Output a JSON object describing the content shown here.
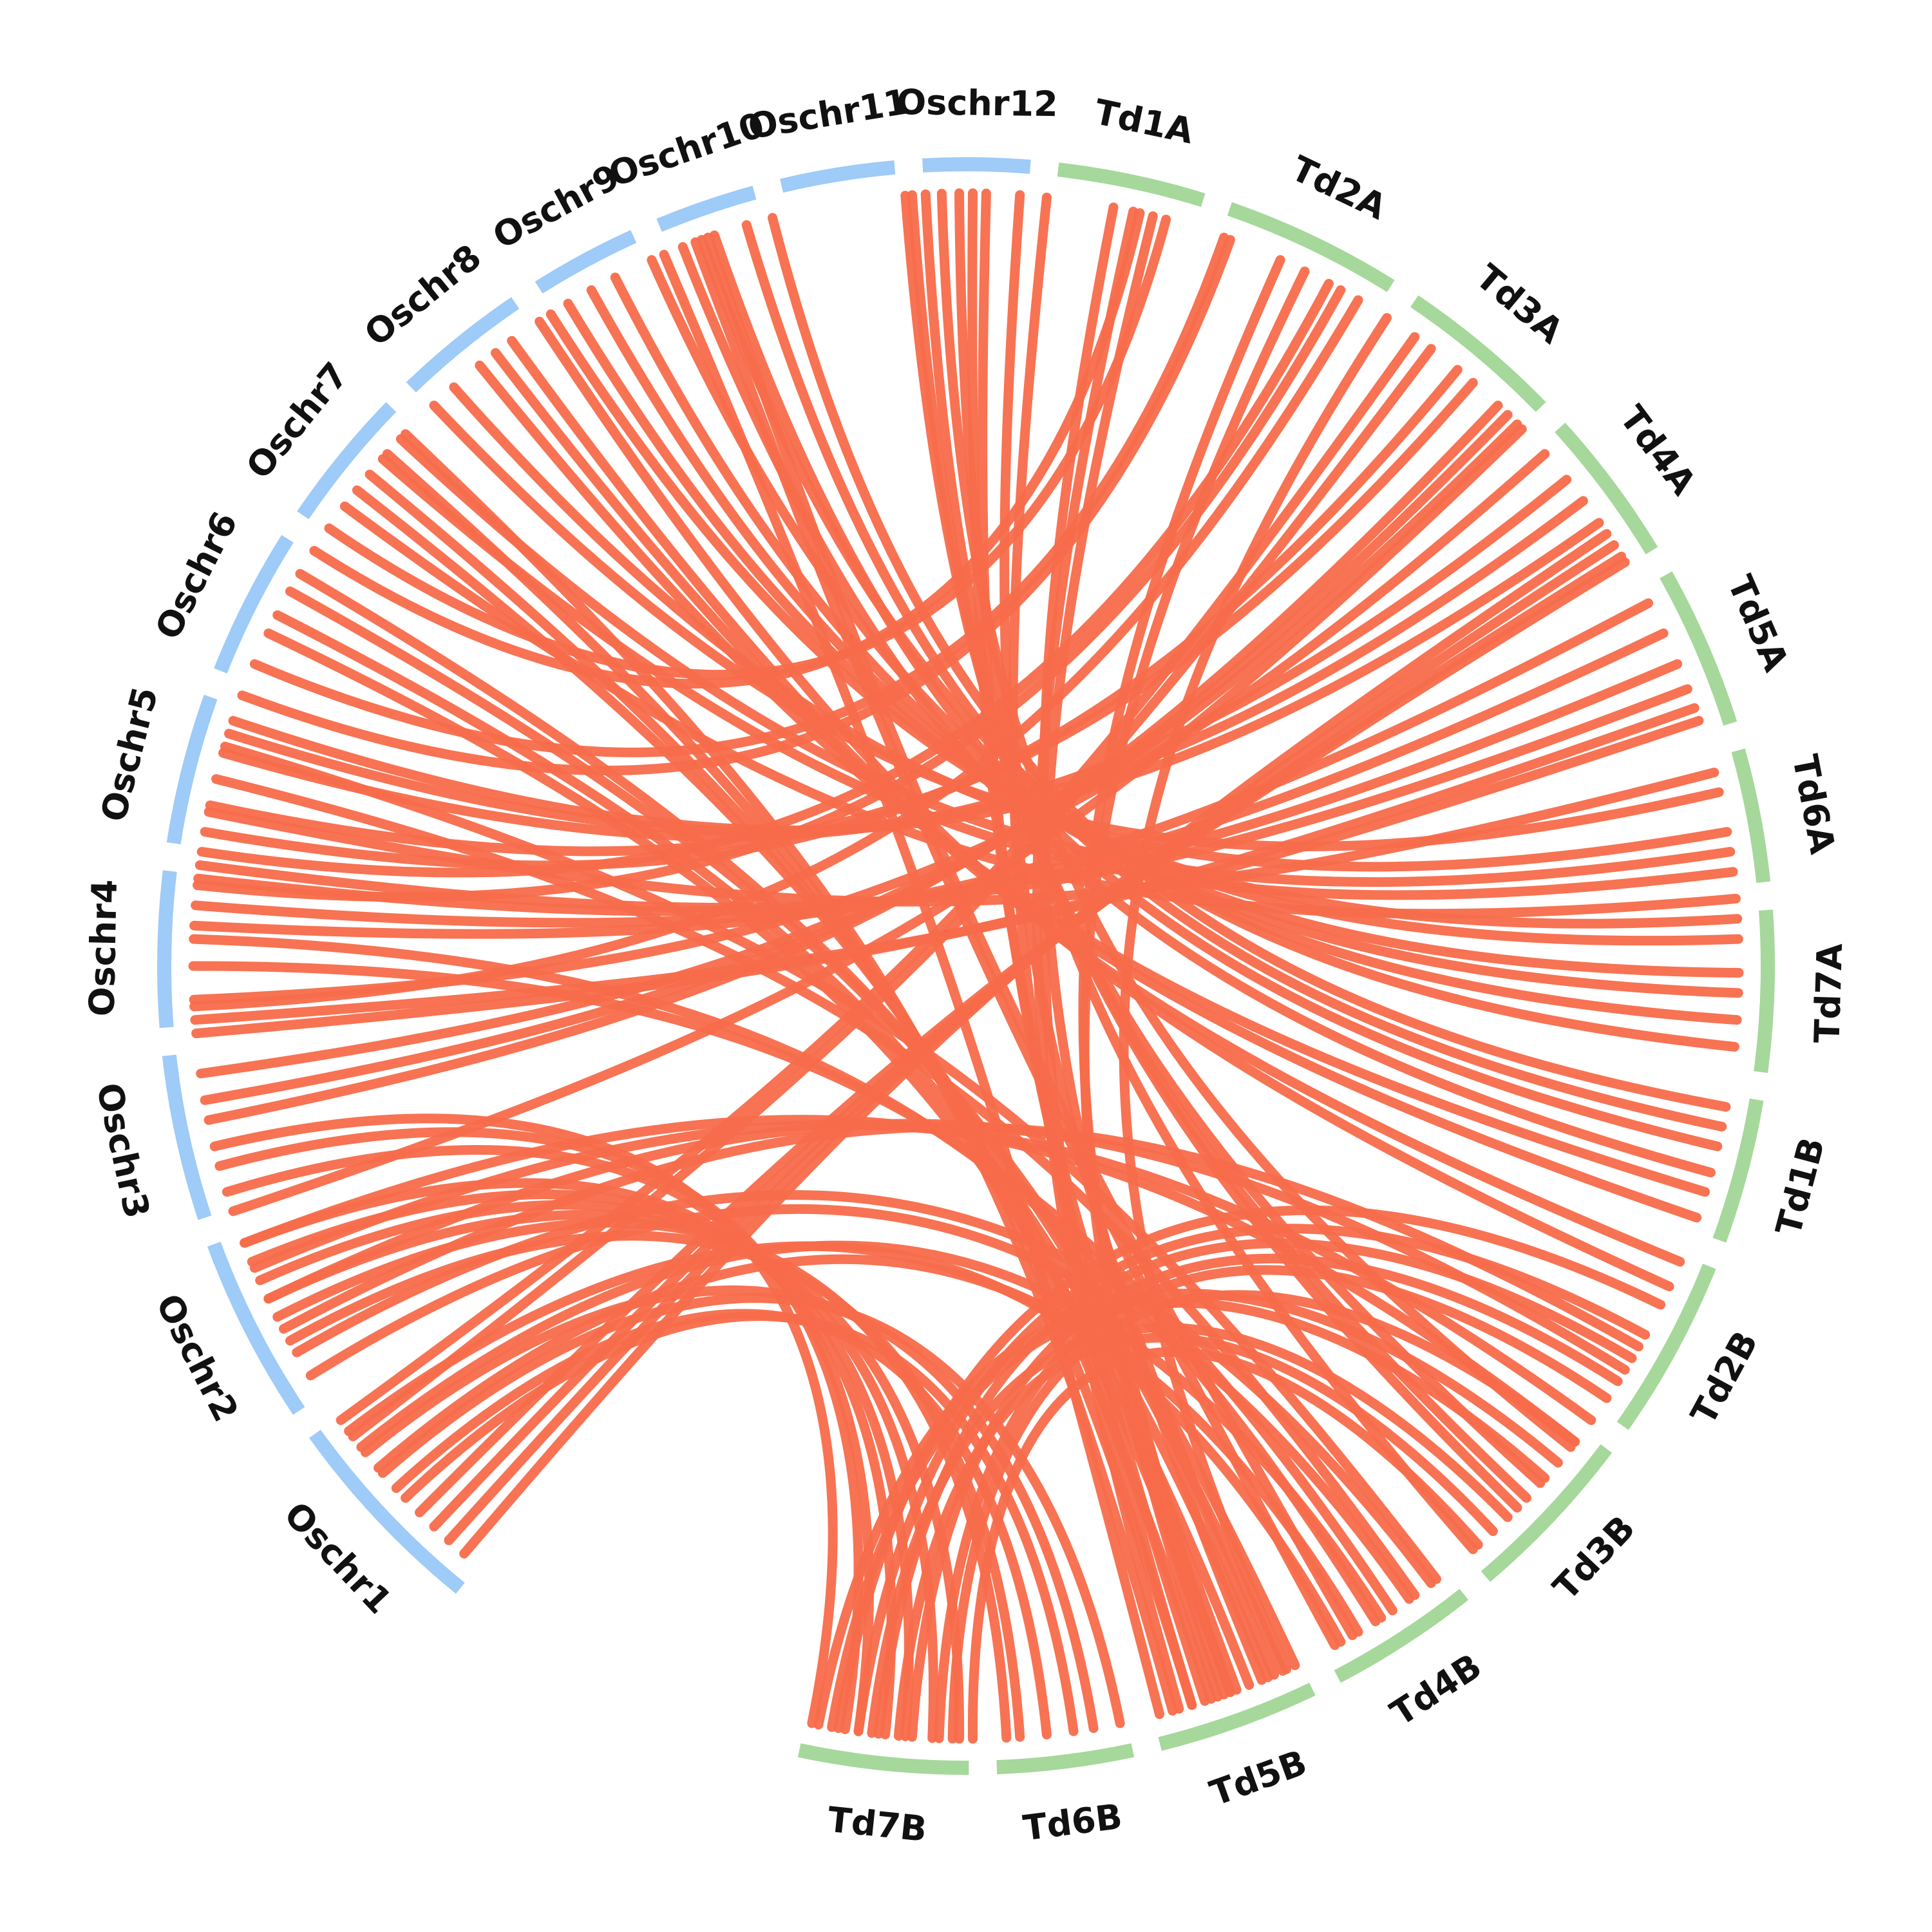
{
  "colors": {
    "rice": "#9ecbf7",
    "wheat": "#a5d89a",
    "link": "#f76c4a",
    "background": "#ffffff"
  },
  "chromosomes": [
    {
      "name": "Oschr1",
      "group": "rice",
      "start": 219.1,
      "end": 234.3
    },
    {
      "name": "Oschr2",
      "group": "rice",
      "start": 236.3,
      "end": 249.7
    },
    {
      "name": "Oschr3",
      "group": "rice",
      "start": 251.7,
      "end": 263.6
    },
    {
      "name": "Oschr4",
      "group": "rice",
      "start": 265.6,
      "end": 276.8
    },
    {
      "name": "Oschr5",
      "group": "rice",
      "start": 278.8,
      "end": 289.6
    },
    {
      "name": "Oschr6",
      "group": "rice",
      "start": 291.6,
      "end": 302.2
    },
    {
      "name": "Oschr7",
      "group": "rice",
      "start": 304.2,
      "end": 314.2
    },
    {
      "name": "Oschr8",
      "group": "rice",
      "start": 316.2,
      "end": 325.8
    },
    {
      "name": "Oschr9",
      "group": "rice",
      "start": 327.8,
      "end": 335.5
    },
    {
      "name": "Oschr10",
      "group": "rice",
      "start": 337.5,
      "end": 344.7
    },
    {
      "name": "Oschr11",
      "group": "rice",
      "start": 346.7,
      "end": 354.9
    },
    {
      "name": "Oschr12",
      "group": "rice",
      "start": 356.9,
      "end": 364.6
    },
    {
      "name": "Td1A",
      "group": "wheat",
      "start": 366.6,
      "end": 377.2
    },
    {
      "name": "Td2A",
      "group": "wheat",
      "start": 379.2,
      "end": 392.0
    },
    {
      "name": "Td3A",
      "group": "wheat",
      "start": 394.0,
      "end": 405.8
    },
    {
      "name": "Td4A",
      "group": "wheat",
      "start": 407.8,
      "end": 418.8
    },
    {
      "name": "Td5A",
      "group": "wheat",
      "start": 420.8,
      "end": 432.4
    },
    {
      "name": "Td6A",
      "group": "wheat",
      "start": 434.4,
      "end": 444.0
    },
    {
      "name": "Td7A",
      "group": "wheat",
      "start": 446.0,
      "end": 457.6
    },
    {
      "name": "Td1B",
      "group": "wheat",
      "start": 459.6,
      "end": 470.0
    },
    {
      "name": "Td2B",
      "group": "wheat",
      "start": 472.0,
      "end": 485.0
    },
    {
      "name": "Td3B",
      "group": "wheat",
      "start": 487.0,
      "end": 499.6
    },
    {
      "name": "Td4B",
      "group": "wheat",
      "start": 501.6,
      "end": 512.4
    },
    {
      "name": "Td5B",
      "group": "wheat",
      "start": 514.4,
      "end": 526.0
    },
    {
      "name": "Td6B",
      "group": "wheat",
      "start": 528.0,
      "end": 537.8
    },
    {
      "name": "Td7B",
      "group": "wheat",
      "start": 539.8,
      "end": 552.0
    }
  ],
  "links": [
    [
      355.5,
      492.0
    ],
    [
      356.0,
      493.5
    ],
    [
      357.0,
      494.5
    ],
    [
      359.5,
      499.0
    ],
    [
      358.2,
      488.5
    ],
    [
      360.5,
      519.5
    ],
    [
      361.5,
      520.5
    ],
    [
      366.0,
      522.0
    ],
    [
      364.0,
      516.5
    ],
    [
      371.0,
      517.5
    ],
    [
      372.5,
      524.0
    ],
    [
      374.0,
      523.0
    ],
    [
      375.0,
      304.5
    ],
    [
      373.0,
      302.5
    ],
    [
      379.5,
      293.0
    ],
    [
      380.0,
      290.5
    ],
    [
      384.0,
      520.0
    ],
    [
      386.0,
      521.0
    ],
    [
      388.0,
      278.5
    ],
    [
      389.0,
      276.0
    ],
    [
      390.5,
      267.0
    ],
    [
      393.0,
      515.5
    ],
    [
      395.5,
      234.0
    ],
    [
      397.0,
      232.5
    ],
    [
      399.5,
      280.0
    ],
    [
      401.0,
      282.0
    ],
    [
      403.5,
      258.5
    ],
    [
      404.5,
      260.0
    ],
    [
      405.5,
      262.0
    ],
    [
      406.0,
      251.5
    ],
    [
      408.5,
      267.5
    ],
    [
      411.0,
      286.0
    ],
    [
      413.0,
      287.5
    ],
    [
      415.0,
      288.5
    ],
    [
      416.0,
      220.5
    ],
    [
      417.0,
      222.0
    ],
    [
      418.0,
      223.5
    ],
    [
      418.5,
      225.0
    ],
    [
      422.0,
      273.0
    ],
    [
      424.5,
      274.5
    ],
    [
      427.0,
      276.5
    ],
    [
      429.0,
      277.5
    ],
    [
      430.5,
      265.0
    ],
    [
      431.5,
      266.0
    ],
    [
      435.5,
      281.5
    ],
    [
      437.0,
      316.5
    ],
    [
      440.0,
      318.5
    ],
    [
      441.5,
      313.0
    ],
    [
      443.0,
      311.0
    ],
    [
      445.0,
      306.5
    ],
    [
      446.5,
      327.5
    ],
    [
      448.0,
      329.0
    ],
    [
      450.5,
      331.0
    ],
    [
      452.0,
      333.0
    ],
    [
      454.0,
      336.0
    ],
    [
      456.0,
      340.0
    ],
    [
      460.5,
      345.5
    ],
    [
      462.0,
      343.5
    ],
    [
      463.5,
      341.0
    ],
    [
      465.5,
      338.5
    ],
    [
      467.0,
      321.0
    ],
    [
      469.0,
      322.5
    ],
    [
      472.5,
      324.0
    ],
    [
      474.5,
      326.5
    ],
    [
      476.0,
      549.5
    ],
    [
      478.5,
      548.0
    ],
    [
      480.5,
      546.5
    ],
    [
      482.5,
      544.0
    ],
    [
      484.0,
      542.0
    ],
    [
      488.0,
      541.0
    ],
    [
      490.0,
      551.0
    ],
    [
      491.5,
      550.0
    ],
    [
      495.5,
      547.0
    ],
    [
      497.0,
      545.0
    ],
    [
      498.5,
      539.5
    ],
    [
      502.5,
      286.5
    ],
    [
      504.5,
      284.0
    ],
    [
      506.5,
      270.0
    ],
    [
      508.0,
      272.0
    ],
    [
      510.0,
      340.5
    ],
    [
      511.5,
      339.5
    ],
    [
      514.8,
      299.0
    ],
    [
      515.8,
      300.5
    ],
    [
      517.0,
      297.0
    ],
    [
      518.5,
      295.5
    ],
    [
      520.0,
      308.0
    ],
    [
      521.5,
      309.5
    ],
    [
      523.0,
      311.5
    ],
    [
      524.5,
      313.5
    ],
    [
      525.5,
      337.0
    ],
    [
      528.5,
      229.0
    ],
    [
      530.5,
      231.0
    ],
    [
      532.0,
      226.5
    ],
    [
      534.0,
      227.5
    ],
    [
      536.0,
      241.0
    ],
    [
      537.0,
      243.0
    ],
    [
      540.5,
      244.5
    ],
    [
      542.5,
      246.0
    ],
    [
      544.5,
      247.5
    ],
    [
      546.0,
      249.0
    ],
    [
      548.0,
      253.0
    ],
    [
      549.0,
      255.0
    ],
    [
      551.5,
      256.5
    ],
    [
      229.5,
      509.5
    ],
    [
      231.5,
      507.5
    ],
    [
      233.0,
      511.0
    ],
    [
      238.0,
      505.0
    ],
    [
      240.0,
      503.0
    ],
    [
      242.0,
      479.5
    ],
    [
      244.5,
      481.5
    ],
    [
      247.0,
      486.0
    ],
    [
      249.0,
      488.0
    ]
  ]
}
